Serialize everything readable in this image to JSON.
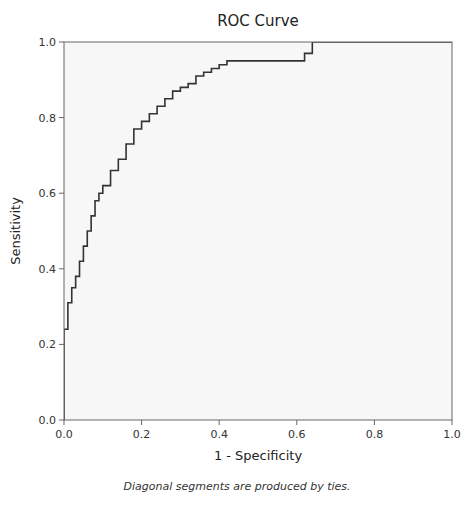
{
  "chart_data": {
    "type": "step",
    "title": "ROC Curve",
    "xlabel": "1 - Specificity",
    "ylabel": "Sensitivity",
    "footnote": "Diagonal segments are produced by ties.",
    "xlim": [
      0.0,
      1.0
    ],
    "ylim": [
      0.0,
      1.0
    ],
    "xticks": [
      {
        "value": 0.0,
        "label": "0.0"
      },
      0.2,
      0.4,
      0.6,
      0.8,
      {
        "value": 1.0,
        "label": "1.0"
      }
    ],
    "yticks": [
      {
        "value": 0.0,
        "label": "0.0"
      },
      0.2,
      0.4,
      0.6,
      0.8,
      {
        "value": 1.0,
        "label": "1.0"
      }
    ],
    "grid": false,
    "color": "#333333",
    "x": [
      0.0,
      0.0,
      0.01,
      0.01,
      0.02,
      0.02,
      0.03,
      0.03,
      0.04,
      0.04,
      0.05,
      0.05,
      0.06,
      0.06,
      0.07,
      0.07,
      0.08,
      0.08,
      0.09,
      0.09,
      0.1,
      0.1,
      0.12,
      0.12,
      0.14,
      0.14,
      0.16,
      0.16,
      0.18,
      0.18,
      0.2,
      0.2,
      0.22,
      0.22,
      0.24,
      0.24,
      0.26,
      0.26,
      0.28,
      0.28,
      0.3,
      0.3,
      0.32,
      0.32,
      0.34,
      0.34,
      0.36,
      0.36,
      0.38,
      0.38,
      0.4,
      0.4,
      0.42,
      0.42,
      0.44,
      0.44,
      0.46,
      0.48,
      0.5,
      0.52,
      0.54,
      0.56,
      0.58,
      0.6,
      0.62,
      0.62,
      0.64,
      0.64,
      0.66,
      1.0
    ],
    "values": [
      0.0,
      0.24,
      0.24,
      0.31,
      0.31,
      0.35,
      0.35,
      0.38,
      0.38,
      0.42,
      0.42,
      0.46,
      0.46,
      0.5,
      0.5,
      0.54,
      0.54,
      0.58,
      0.58,
      0.6,
      0.6,
      0.62,
      0.62,
      0.66,
      0.66,
      0.69,
      0.69,
      0.73,
      0.73,
      0.77,
      0.77,
      0.79,
      0.79,
      0.81,
      0.81,
      0.83,
      0.83,
      0.85,
      0.85,
      0.87,
      0.87,
      0.88,
      0.88,
      0.89,
      0.89,
      0.91,
      0.91,
      0.92,
      0.92,
      0.93,
      0.93,
      0.94,
      0.94,
      0.95,
      0.95,
      0.95,
      0.95,
      0.95,
      0.95,
      0.95,
      0.95,
      0.95,
      0.95,
      0.95,
      0.95,
      0.97,
      0.97,
      1.0,
      1.0,
      1.0
    ]
  }
}
